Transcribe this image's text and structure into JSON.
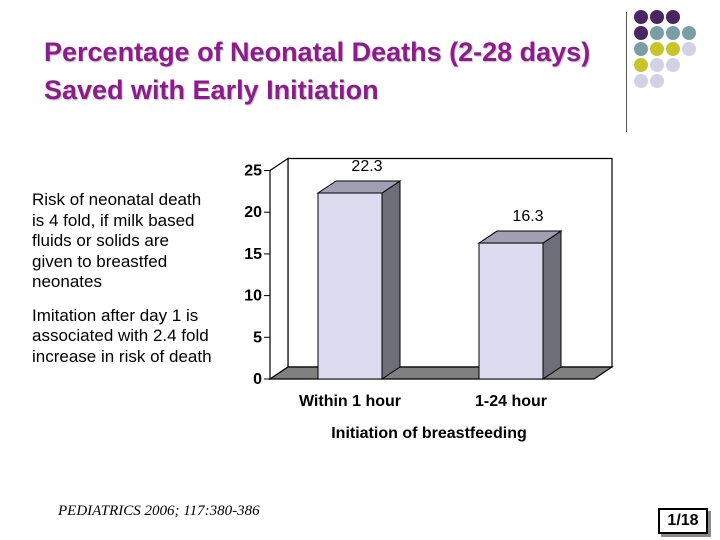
{
  "slide": {
    "title": "Percentage of Neonatal Deaths (2-28 days) Saved with Early Initiation",
    "bullets": [
      "Risk of neonatal death is 4 fold, if milk based fluids or solids are given to breastfed neonates",
      "Imitation after day 1 is associated with 2.4 fold increase in risk of death"
    ],
    "citation": "PEDIATRICS 2006; 117:380-386",
    "page": "1/18"
  },
  "colors": {
    "title": "#8e1b8e",
    "bar_front": "#dcdcf0",
    "bar_side": "#6e6e78",
    "bar_top": "#a0a0b4",
    "wall": "#ffffff",
    "floor": "#808080",
    "dot_purple": "#4b2563",
    "dot_teal": "#7a9ea6",
    "dot_olive": "#c6c62a",
    "dot_lilac": "#d2d2e6"
  },
  "chart_data": {
    "type": "bar",
    "categories": [
      "Within 1 hour",
      "1-24 hour"
    ],
    "values": [
      22.3,
      16.3
    ],
    "data_labels": [
      "22.3",
      "16.3"
    ],
    "xlabel": "Initiation of breastfeeding",
    "ylabel": "",
    "ylim": [
      0,
      25
    ],
    "yticks": [
      "0",
      "5",
      "10",
      "15",
      "20",
      "25"
    ],
    "style": "3d",
    "grid": false,
    "legend": "none"
  }
}
